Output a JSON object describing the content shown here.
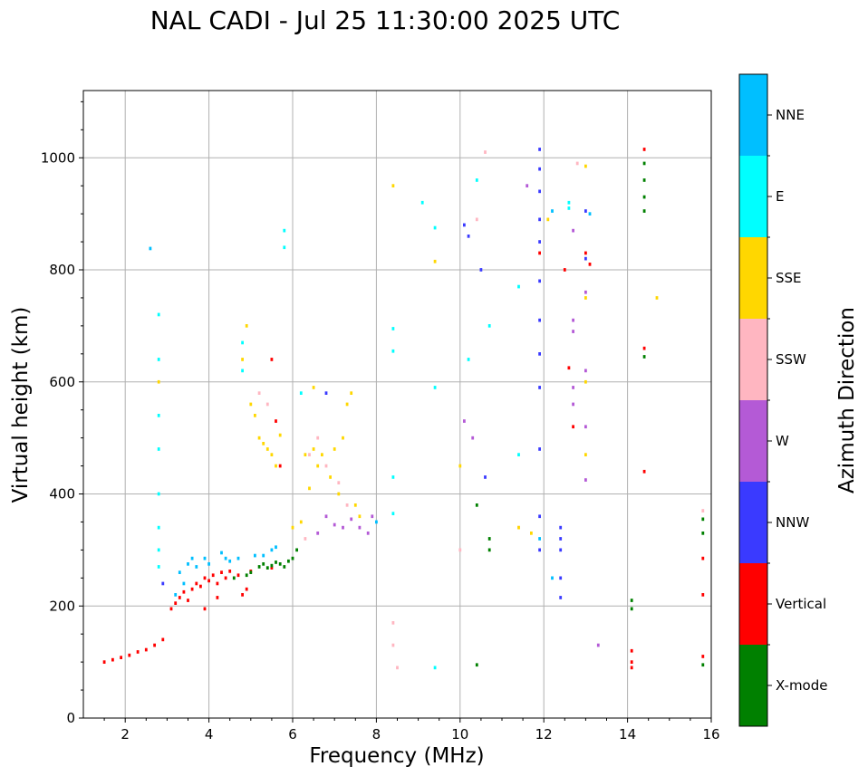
{
  "chart_data": {
    "type": "scatter",
    "title": "NAL CADI - Jul 25 11:30:00 2025 UTC",
    "xlabel": "Frequency (MHz)",
    "ylabel": "Virtual height (km)",
    "xlim": [
      1,
      16
    ],
    "ylim": [
      0,
      1120
    ],
    "xticks": [
      2,
      4,
      6,
      8,
      10,
      12,
      14,
      16
    ],
    "yticks": [
      0,
      200,
      400,
      600,
      800,
      1000
    ],
    "grid": true,
    "colorbar": {
      "label": "Azimuth Direction",
      "categories": [
        {
          "name": "X-mode",
          "color": "#008000"
        },
        {
          "name": "Vertical",
          "color": "#ff0000"
        },
        {
          "name": "NNW",
          "color": "#3a3aff"
        },
        {
          "name": "W",
          "color": "#b45ad6"
        },
        {
          "name": "SSW",
          "color": "#ffb6c1"
        },
        {
          "name": "SSE",
          "color": "#ffd700"
        },
        {
          "name": "E",
          "color": "#00ffff"
        },
        {
          "name": "NNE",
          "color": "#00bfff"
        }
      ]
    },
    "bin_width_mhz": 0.06,
    "bin_height_km": 6,
    "series": [
      {
        "name": "Vertical",
        "points": [
          [
            1.5,
            100
          ],
          [
            1.7,
            104
          ],
          [
            1.9,
            108
          ],
          [
            2.1,
            112
          ],
          [
            2.3,
            118
          ],
          [
            2.5,
            122
          ],
          [
            2.7,
            130
          ],
          [
            2.9,
            140
          ],
          [
            3.1,
            195
          ],
          [
            3.2,
            205
          ],
          [
            3.3,
            215
          ],
          [
            3.4,
            225
          ],
          [
            3.5,
            210
          ],
          [
            3.6,
            230
          ],
          [
            3.7,
            240
          ],
          [
            3.8,
            235
          ],
          [
            3.9,
            250
          ],
          [
            4.0,
            245
          ],
          [
            4.1,
            255
          ],
          [
            4.2,
            240
          ],
          [
            4.3,
            260
          ],
          [
            4.4,
            250
          ],
          [
            4.5,
            262
          ],
          [
            4.7,
            255
          ],
          [
            5.0,
            262
          ],
          [
            5.5,
            268
          ],
          [
            4.8,
            220
          ],
          [
            4.9,
            230
          ],
          [
            3.9,
            195
          ],
          [
            4.2,
            215
          ],
          [
            5.5,
            640
          ],
          [
            5.6,
            530
          ],
          [
            5.7,
            450
          ],
          [
            11.9,
            830
          ],
          [
            12.5,
            800
          ],
          [
            12.6,
            625
          ],
          [
            12.7,
            520
          ],
          [
            13.0,
            830
          ],
          [
            13.1,
            810
          ],
          [
            14.4,
            1015
          ],
          [
            14.4,
            660
          ],
          [
            14.4,
            440
          ],
          [
            14.1,
            120
          ],
          [
            14.1,
            100
          ],
          [
            14.1,
            90
          ],
          [
            15.8,
            285
          ],
          [
            15.8,
            220
          ],
          [
            15.8,
            110
          ]
        ]
      },
      {
        "name": "X-mode",
        "points": [
          [
            5.2,
            270
          ],
          [
            5.3,
            275
          ],
          [
            5.4,
            268
          ],
          [
            5.5,
            272
          ],
          [
            5.6,
            278
          ],
          [
            5.7,
            275
          ],
          [
            5.8,
            270
          ],
          [
            5.9,
            280
          ],
          [
            6.0,
            285
          ],
          [
            6.1,
            300
          ],
          [
            4.9,
            255
          ],
          [
            5.0,
            260
          ],
          [
            4.6,
            250
          ],
          [
            14.4,
            990
          ],
          [
            14.4,
            960
          ],
          [
            14.4,
            930
          ],
          [
            14.4,
            905
          ],
          [
            14.4,
            645
          ],
          [
            14.1,
            210
          ],
          [
            14.1,
            195
          ],
          [
            10.4,
            95
          ],
          [
            10.4,
            380
          ],
          [
            10.7,
            320
          ],
          [
            10.7,
            300
          ],
          [
            15.8,
            330
          ],
          [
            15.8,
            355
          ],
          [
            15.8,
            95
          ]
        ]
      },
      {
        "name": "NNW",
        "points": [
          [
            6.8,
            580
          ],
          [
            11.9,
            1015
          ],
          [
            11.9,
            980
          ],
          [
            11.9,
            940
          ],
          [
            11.9,
            890
          ],
          [
            11.9,
            850
          ],
          [
            11.9,
            780
          ],
          [
            11.9,
            710
          ],
          [
            11.9,
            650
          ],
          [
            11.9,
            590
          ],
          [
            11.9,
            480
          ],
          [
            11.9,
            360
          ],
          [
            11.9,
            300
          ],
          [
            12.4,
            340
          ],
          [
            12.4,
            320
          ],
          [
            12.4,
            300
          ],
          [
            12.4,
            250
          ],
          [
            12.4,
            215
          ],
          [
            10.1,
            880
          ],
          [
            10.2,
            860
          ],
          [
            10.5,
            800
          ],
          [
            10.6,
            430
          ],
          [
            13.0,
            905
          ],
          [
            13.0,
            820
          ],
          [
            2.9,
            240
          ]
        ]
      },
      {
        "name": "W",
        "points": [
          [
            12.7,
            870
          ],
          [
            12.7,
            710
          ],
          [
            12.7,
            690
          ],
          [
            12.7,
            590
          ],
          [
            12.7,
            560
          ],
          [
            13.0,
            760
          ],
          [
            13.0,
            620
          ],
          [
            13.0,
            520
          ],
          [
            13.0,
            425
          ],
          [
            6.8,
            360
          ],
          [
            7.0,
            345
          ],
          [
            7.2,
            340
          ],
          [
            7.4,
            355
          ],
          [
            7.6,
            340
          ],
          [
            7.8,
            330
          ],
          [
            7.9,
            360
          ],
          [
            6.6,
            330
          ],
          [
            10.1,
            530
          ],
          [
            10.3,
            500
          ],
          [
            13.3,
            130
          ],
          [
            11.6,
            950
          ]
        ]
      },
      {
        "name": "SSW",
        "points": [
          [
            5.2,
            580
          ],
          [
            5.4,
            560
          ],
          [
            6.4,
            470
          ],
          [
            6.6,
            500
          ],
          [
            6.8,
            450
          ],
          [
            7.1,
            420
          ],
          [
            7.3,
            380
          ],
          [
            6.3,
            320
          ],
          [
            10.4,
            890
          ],
          [
            10.6,
            1010
          ],
          [
            8.4,
            170
          ],
          [
            8.4,
            130
          ],
          [
            8.5,
            90
          ],
          [
            10.0,
            300
          ],
          [
            11.4,
            340
          ],
          [
            12.8,
            990
          ],
          [
            15.8,
            370
          ]
        ]
      },
      {
        "name": "SSE",
        "points": [
          [
            5.0,
            560
          ],
          [
            5.1,
            540
          ],
          [
            5.2,
            500
          ],
          [
            5.3,
            490
          ],
          [
            5.4,
            480
          ],
          [
            5.5,
            470
          ],
          [
            5.6,
            450
          ],
          [
            5.7,
            505
          ],
          [
            6.3,
            470
          ],
          [
            6.5,
            480
          ],
          [
            6.6,
            450
          ],
          [
            6.7,
            470
          ],
          [
            6.9,
            430
          ],
          [
            7.0,
            480
          ],
          [
            7.1,
            400
          ],
          [
            7.2,
            500
          ],
          [
            7.3,
            560
          ],
          [
            7.5,
            380
          ],
          [
            7.6,
            360
          ],
          [
            6.4,
            410
          ],
          [
            6.2,
            350
          ],
          [
            6.0,
            340
          ],
          [
            6.5,
            590
          ],
          [
            7.4,
            580
          ],
          [
            4.8,
            640
          ],
          [
            4.9,
            700
          ],
          [
            13.0,
            985
          ],
          [
            13.0,
            750
          ],
          [
            13.0,
            600
          ],
          [
            13.0,
            470
          ],
          [
            14.7,
            750
          ],
          [
            8.4,
            950
          ],
          [
            9.4,
            815
          ],
          [
            12.1,
            890
          ],
          [
            11.4,
            340
          ],
          [
            11.7,
            330
          ],
          [
            10.0,
            450
          ],
          [
            2.8,
            600
          ]
        ]
      },
      {
        "name": "E",
        "points": [
          [
            2.8,
            720
          ],
          [
            2.8,
            640
          ],
          [
            2.8,
            540
          ],
          [
            2.8,
            480
          ],
          [
            2.8,
            400
          ],
          [
            2.8,
            340
          ],
          [
            2.8,
            300
          ],
          [
            2.8,
            270
          ],
          [
            5.8,
            870
          ],
          [
            5.8,
            840
          ],
          [
            6.2,
            580
          ],
          [
            4.8,
            620
          ],
          [
            4.8,
            670
          ],
          [
            8.4,
            695
          ],
          [
            8.4,
            655
          ],
          [
            8.4,
            430
          ],
          [
            8.4,
            365
          ],
          [
            9.1,
            920
          ],
          [
            9.4,
            875
          ],
          [
            9.4,
            590
          ],
          [
            10.4,
            960
          ],
          [
            10.7,
            700
          ],
          [
            12.6,
            920
          ],
          [
            12.6,
            910
          ],
          [
            10.2,
            640
          ],
          [
            9.4,
            90
          ],
          [
            11.4,
            770
          ],
          [
            11.4,
            470
          ]
        ]
      },
      {
        "name": "NNE",
        "points": [
          [
            4.3,
            295
          ],
          [
            4.4,
            285
          ],
          [
            4.5,
            280
          ],
          [
            4.0,
            275
          ],
          [
            3.5,
            275
          ],
          [
            3.6,
            285
          ],
          [
            3.3,
            260
          ],
          [
            3.4,
            240
          ],
          [
            3.2,
            220
          ],
          [
            3.7,
            270
          ],
          [
            3.9,
            285
          ],
          [
            4.7,
            285
          ],
          [
            5.1,
            290
          ],
          [
            5.3,
            290
          ],
          [
            5.5,
            300
          ],
          [
            5.6,
            305
          ],
          [
            2.6,
            838
          ],
          [
            12.2,
            905
          ],
          [
            12.2,
            250
          ],
          [
            13.1,
            900
          ],
          [
            8.0,
            350
          ],
          [
            11.9,
            320
          ]
        ]
      }
    ]
  }
}
